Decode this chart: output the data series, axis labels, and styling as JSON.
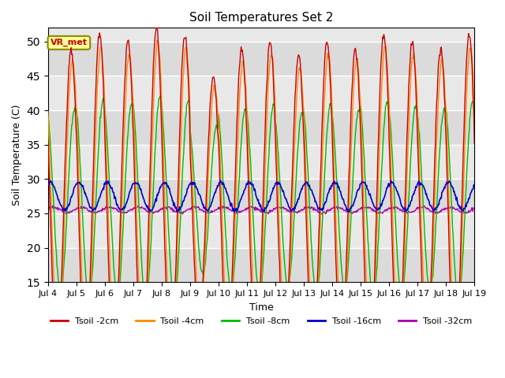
{
  "title": "Soil Temperatures Set 2",
  "xlabel": "Time",
  "ylabel": "Soil Temperature (C)",
  "ylim": [
    15,
    52
  ],
  "xlim": [
    0,
    360
  ],
  "x_tick_labels": [
    "Jul 4",
    "Jul 5",
    "Jul 6",
    "Jul 7",
    "Jul 8",
    "Jul 9",
    "Jul 10",
    "Jul 11",
    "Jul 12",
    "Jul 13",
    "Jul 14",
    "Jul 15",
    "Jul 16",
    "Jul 17",
    "Jul 18",
    "Jul 19"
  ],
  "x_tick_positions": [
    0,
    24,
    48,
    72,
    96,
    120,
    144,
    168,
    192,
    216,
    240,
    264,
    288,
    312,
    336,
    360
  ],
  "yticks": [
    15,
    20,
    25,
    30,
    35,
    40,
    45,
    50
  ],
  "series_colors": [
    "#cc0000",
    "#ff8800",
    "#00bb00",
    "#0000cc",
    "#aa00aa"
  ],
  "series_labels": [
    "Tsoil -2cm",
    "Tsoil -4cm",
    "Tsoil -8cm",
    "Tsoil -16cm",
    "Tsoil -32cm"
  ],
  "annotation_text": "VR_met",
  "annotation_color": "#cc0000",
  "annotation_bg": "#ffff99",
  "background_color": "#e8e8e8",
  "grid_color": "#ffffff",
  "grid_bands": [
    [
      15,
      20
    ],
    [
      25,
      30
    ],
    [
      35,
      40
    ],
    [
      45,
      50
    ]
  ]
}
